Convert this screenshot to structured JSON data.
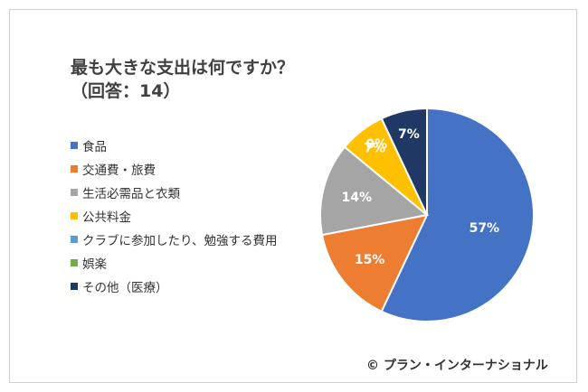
{
  "chart_data": {
    "type": "pie",
    "title": "最も大きな支出は何ですか？",
    "subtitle": "（回答：14）",
    "legend_position": "left",
    "slices": [
      {
        "label": "食品",
        "value": 57,
        "display": "57%",
        "color": "#4472C4",
        "label_color": "#ffffff"
      },
      {
        "label": "交通費・旅費",
        "value": 15,
        "display": "15%",
        "color": "#ED7D31",
        "label_color": "#ffffff"
      },
      {
        "label": "生活必需品と衣類",
        "value": 14,
        "display": "14%",
        "color": "#A5A5A5",
        "label_color": "#ffffff"
      },
      {
        "label": "公共料金",
        "value": 7,
        "display": "7%",
        "color": "#FFC000",
        "label_color": "#ffffff"
      },
      {
        "label": "クラブに参加したり、勉強する費用",
        "value": 0,
        "display": "",
        "color": "#5B9BD5",
        "label_color": "#ffffff"
      },
      {
        "label": "娯楽",
        "value": 0,
        "display": "0%",
        "color": "#70AD47",
        "label_color": "#ffffff"
      },
      {
        "label": "その他（医療）",
        "value": 7,
        "display": "7%",
        "color": "#203864",
        "label_color": "#ffffff"
      }
    ]
  },
  "copyright": "© プラン・インターナショナル"
}
